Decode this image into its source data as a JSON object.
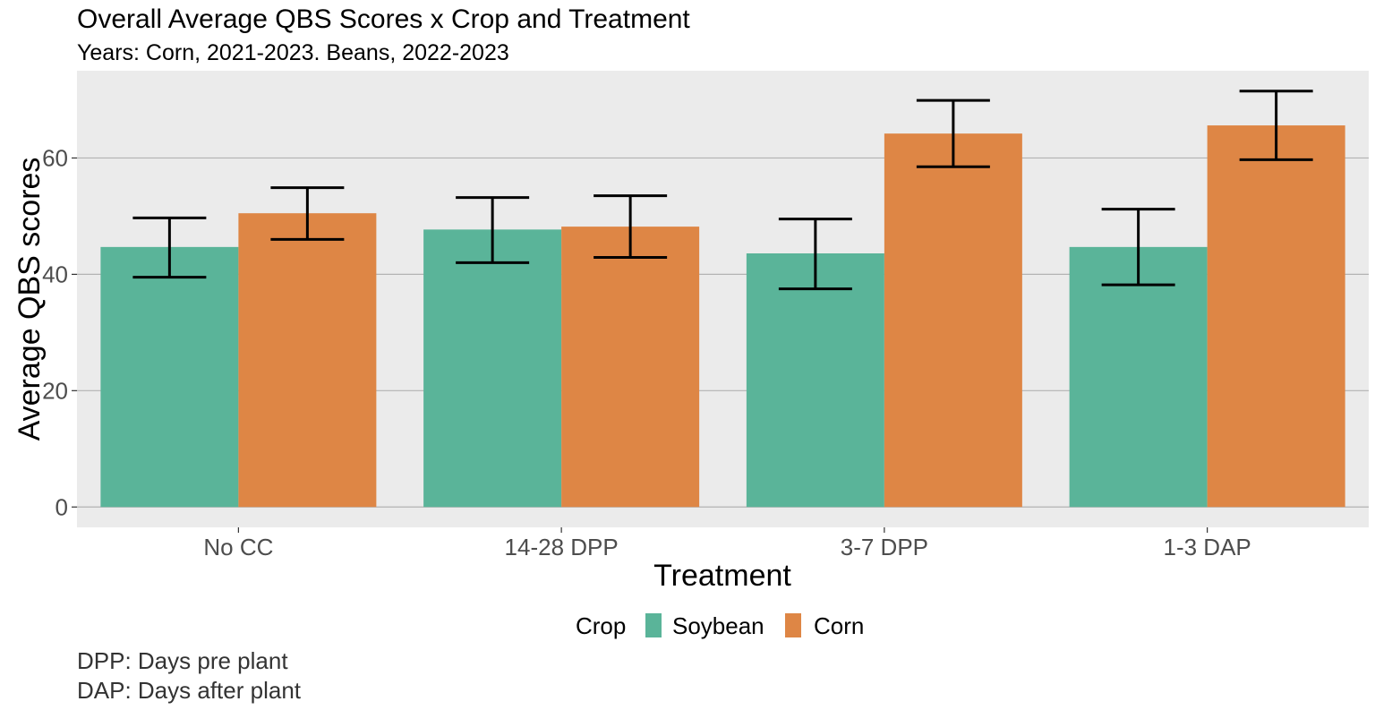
{
  "colors": {
    "panel_bg": "#ebebeb",
    "gridline": "#b3b3b3",
    "soybean": "#5ab499",
    "corn": "#de8645",
    "errorbar": "#000000"
  },
  "chart_data": {
    "type": "bar",
    "title": "Overall Average QBS Scores x Crop and Treatment",
    "subtitle": "Years: Corn, 2021-2023. Beans, 2022-2023",
    "xlabel": "Treatment",
    "ylabel": "Average QBS scores",
    "categories": [
      "No CC",
      "14-28 DPP",
      "3-7 DPP",
      "1-3 DAP"
    ],
    "ylim": [
      -3.5,
      75
    ],
    "yticks": [
      0,
      20,
      40,
      60
    ],
    "ytick_labels": [
      "0",
      "20",
      "40",
      "60"
    ],
    "grid": true,
    "legend": {
      "title": "Crop",
      "position": "bottom",
      "entries": [
        "Soybean",
        "Corn"
      ]
    },
    "series": [
      {
        "name": "Soybean",
        "color_key": "soybean",
        "values": [
          44.7,
          47.7,
          43.6,
          44.7
        ],
        "error_low": [
          39.5,
          42.0,
          37.5,
          38.2
        ],
        "error_high": [
          49.7,
          53.2,
          49.5,
          51.2
        ]
      },
      {
        "name": "Corn",
        "color_key": "corn",
        "values": [
          50.5,
          48.2,
          64.2,
          65.6
        ],
        "error_low": [
          46.0,
          42.9,
          58.5,
          59.7
        ],
        "error_high": [
          54.9,
          53.5,
          69.9,
          71.5
        ]
      }
    ],
    "caption_lines": [
      "DPP: Days pre plant",
      "DAP: Days after plant"
    ]
  }
}
